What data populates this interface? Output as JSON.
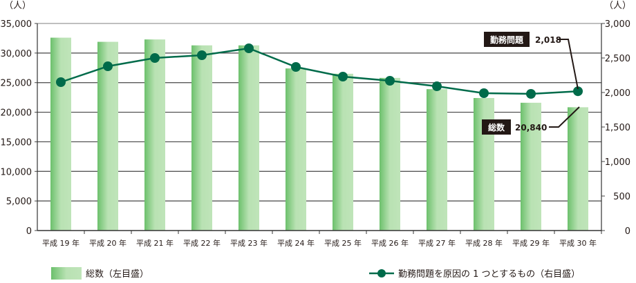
{
  "chart_data": {
    "type": "bar+line",
    "left_unit": "（人）",
    "right_unit": "（人）",
    "categories": [
      "平成 19 年",
      "平成 20 年",
      "平成 21 年",
      "平成 22 年",
      "平成 23 年",
      "平成 24 年",
      "平成 25 年",
      "平成 26 年",
      "平成 27 年",
      "平成 28 年",
      "平成 29 年",
      "平成 30 年"
    ],
    "left_axis": {
      "ylim": [
        0,
        35000
      ],
      "ticks": [
        "0",
        "5,000",
        "10,000",
        "15,000",
        "20,000",
        "25,000",
        "30,000",
        "35,000"
      ]
    },
    "right_axis": {
      "ylim": [
        0,
        3000
      ],
      "ticks": [
        "0",
        "500",
        "1,000",
        "1,500",
        "2,000",
        "2,500",
        "3,000"
      ]
    },
    "grid": true,
    "series": [
      {
        "name": "総数（左目盛）",
        "type": "bar",
        "axis": "left",
        "color": "#7cc77c",
        "values": [
          32600,
          31900,
          32300,
          31300,
          31300,
          27400,
          26500,
          25800,
          23900,
          22400,
          21600,
          20840
        ]
      },
      {
        "name": "勤務問題を原因の 1 つとするもの（右目盛）",
        "type": "line",
        "axis": "right",
        "color": "#006b4a",
        "values": [
          2150,
          2380,
          2500,
          2540,
          2640,
          2370,
          2230,
          2170,
          2090,
          1990,
          1980,
          2018
        ]
      }
    ],
    "annotations": [
      {
        "tag": "勤務問題",
        "value": "2,018"
      },
      {
        "tag": "総数",
        "value": "20,840"
      }
    ],
    "legend_position": "bottom"
  }
}
